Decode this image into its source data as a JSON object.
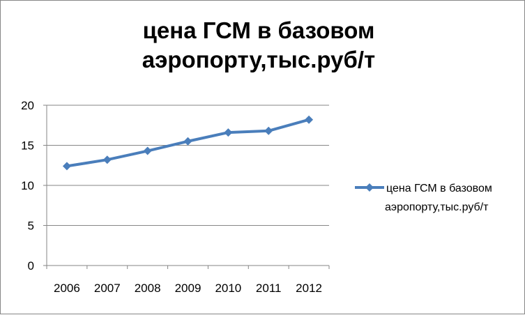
{
  "chart_data": {
    "type": "line",
    "title": "цена ГСМ в базовом\nаэропорту,тыс.руб/т",
    "x": [
      "2006",
      "2007",
      "2008",
      "2009",
      "2010",
      "2011",
      "2012"
    ],
    "series": [
      {
        "name": "цена ГСМ в базовом аэропорту,тыс.руб/т",
        "values": [
          12.4,
          13.2,
          14.3,
          15.5,
          16.6,
          16.8,
          18.2
        ]
      }
    ],
    "ylim": [
      0,
      20
    ],
    "yticks": [
      "0",
      "5",
      "10",
      "15",
      "20"
    ],
    "legend_lines": [
      "цена ГСМ в базовом",
      "аэропорту,тыс.руб/т"
    ],
    "grid": true,
    "legend_position": "right",
    "colors": {
      "series": "#4A7EBB",
      "gridline": "#868686",
      "axis": "#868686"
    }
  }
}
